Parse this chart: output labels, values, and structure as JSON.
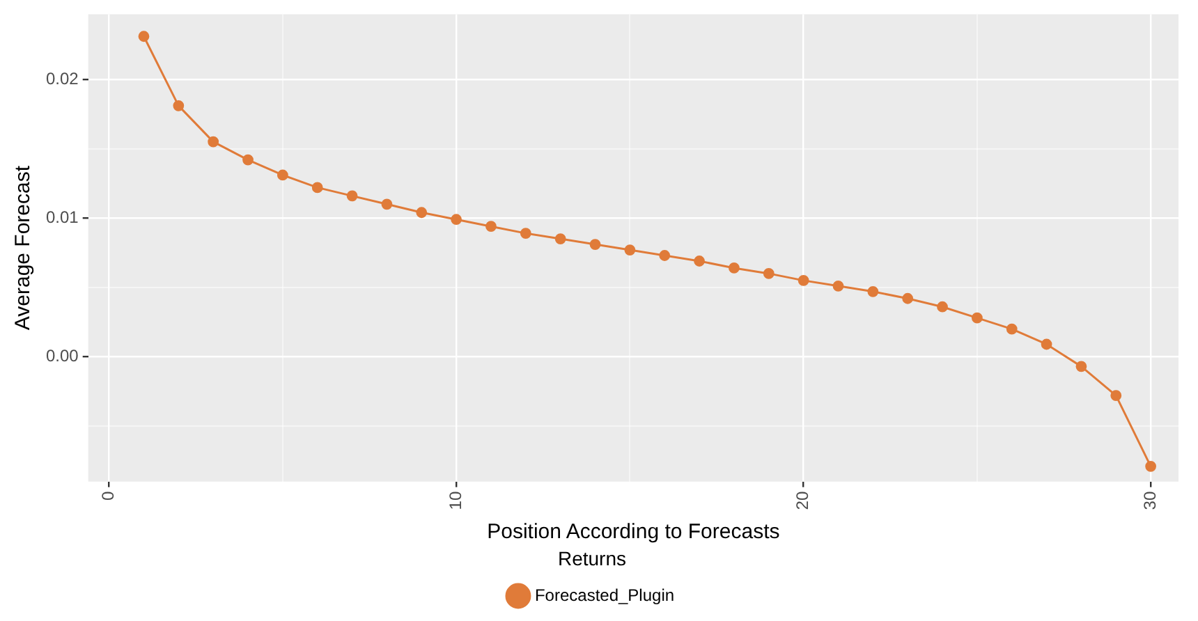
{
  "chart_data": {
    "type": "line",
    "xlabel": "Position According to Forecasts",
    "ylabel": "Average Forecast",
    "legend_title": "Returns",
    "x": [
      1,
      2,
      3,
      4,
      5,
      6,
      7,
      8,
      9,
      10,
      11,
      12,
      13,
      14,
      15,
      16,
      17,
      18,
      19,
      20,
      21,
      22,
      23,
      24,
      25,
      26,
      27,
      28,
      29,
      30
    ],
    "series": [
      {
        "name": "Forecasted_Plugin",
        "color": "#e07b39",
        "values": [
          0.0231,
          0.0181,
          0.0155,
          0.0142,
          0.0131,
          0.0122,
          0.0116,
          0.011,
          0.0104,
          0.0099,
          0.0094,
          0.0089,
          0.0085,
          0.0081,
          0.0077,
          0.0073,
          0.0069,
          0.0064,
          0.006,
          0.0055,
          0.0051,
          0.0047,
          0.0042,
          0.0036,
          0.0028,
          0.002,
          0.0009,
          -0.0007,
          -0.0028,
          -0.0079
        ]
      }
    ],
    "xlim": [
      -0.6,
      30.8
    ],
    "ylim": [
      -0.009,
      0.0247
    ],
    "xticks": [
      0,
      {
        "value": 5,
        "label": null
      },
      10,
      {
        "value": 15,
        "label": null
      },
      20,
      {
        "value": 25,
        "label": null
      },
      30
    ],
    "yticks": [
      {
        "value": -0.005,
        "label": null
      },
      {
        "value": 0,
        "label": "0.00"
      },
      {
        "value": 0.005,
        "label": null
      },
      {
        "value": 0.01,
        "label": "0.01"
      },
      {
        "value": 0.015,
        "label": null
      },
      {
        "value": 0.02,
        "label": "0.02"
      }
    ],
    "grid": true,
    "legend": "bottom",
    "marker": "circle",
    "line_style": "solid"
  }
}
